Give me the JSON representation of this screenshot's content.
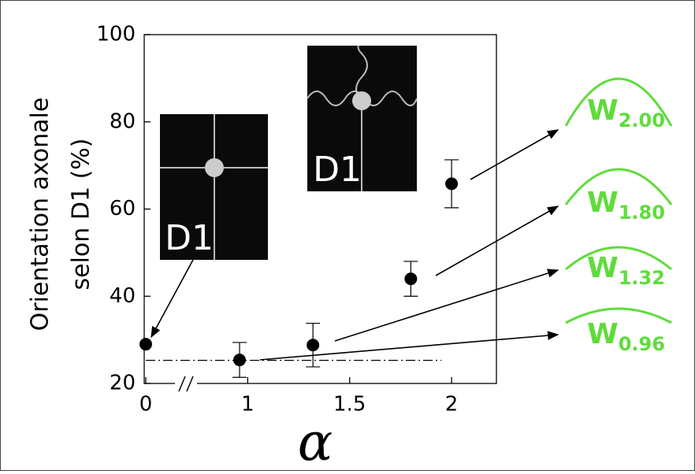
{
  "chart_data": {
    "type": "scatter",
    "ylabel": [
      "Orientation axonale",
      "selon D1 (%)"
    ],
    "xlabel": "α",
    "x": [
      0,
      0.96,
      1.32,
      1.8,
      2
    ],
    "series": [
      {
        "values": [
          29,
          25.4,
          28.8,
          44,
          65.8
        ],
        "errors": [
          null,
          4,
          5,
          4,
          5.5
        ],
        "color": "#000000"
      }
    ],
    "xlim": [
      0,
      2.22
    ],
    "xbreak": [
      0.1,
      0.6
    ],
    "xticks": [
      0,
      1,
      1.5,
      2
    ],
    "ylim": [
      20,
      100
    ],
    "yticks": [
      20,
      40,
      60,
      80,
      100
    ],
    "reference_line": {
      "y": 25.3,
      "x": [
        0,
        1.95
      ]
    },
    "insets": [
      {
        "label": "D1"
      },
      {
        "label": "D1"
      }
    ],
    "annotations": [
      {
        "letter": "W",
        "subscript": "2.00",
        "color": "#5fdc3c"
      },
      {
        "letter": "W",
        "subscript": "1.80",
        "color": "#5fdc3c"
      },
      {
        "letter": "W",
        "subscript": "1.32",
        "color": "#5fdc3c"
      },
      {
        "letter": "W",
        "subscript": "0.96",
        "color": "#5fdc3c"
      }
    ]
  }
}
